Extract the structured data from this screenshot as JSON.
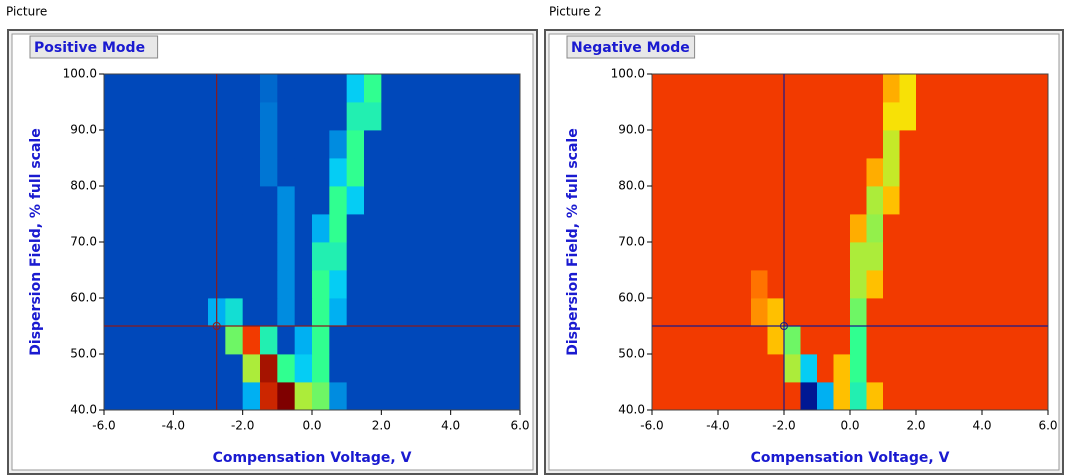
{
  "chart_data": [
    {
      "type": "heatmap",
      "panel_label": "Picture",
      "title": "Positive Mode",
      "xlabel": "Compensation Voltage, V",
      "ylabel": "Dispersion Field, % full scale",
      "xlim": [
        -6,
        6
      ],
      "ylim": [
        40,
        100
      ],
      "xticks": [
        {
          "value": -6,
          "label": "-6.0"
        },
        {
          "value": -4,
          "label": "-4.0"
        },
        {
          "value": -2,
          "label": "-2.0"
        },
        {
          "value": 0,
          "label": "0.0"
        },
        {
          "value": 2,
          "label": "2.0"
        },
        {
          "value": 4,
          "label": "4.0"
        },
        {
          "value": 6,
          "label": "6.0"
        }
      ],
      "yticks": [
        {
          "value": 40,
          "label": "40.0"
        },
        {
          "value": 50,
          "label": "50.0"
        },
        {
          "value": 60,
          "label": "60.0"
        },
        {
          "value": 70,
          "label": "70.0"
        },
        {
          "value": 80,
          "label": "80.0"
        },
        {
          "value": 90,
          "label": "90.0"
        },
        {
          "value": 100,
          "label": "100.0"
        }
      ],
      "xbins": [
        -6,
        -5.5,
        -5,
        -4.5,
        -4,
        -3.5,
        -3,
        -2.5,
        -2,
        -1.5,
        -1,
        -0.5,
        0,
        0.5,
        1,
        1.5,
        2,
        2.5,
        3,
        3.5,
        4,
        4.5,
        5,
        5.5,
        6
      ],
      "ybins": [
        40,
        45,
        50,
        55,
        60,
        65,
        70,
        75,
        80,
        85,
        90,
        95,
        100
      ],
      "colormap": [
        "#00007f",
        "#0050c0",
        "#00c8ff",
        "#30ff90",
        "#ffe000",
        "#ff4000",
        "#7f0000"
      ],
      "cursor": {
        "x": -2.75,
        "y": 55,
        "color": "#8b1a1a"
      },
      "z": [
        [
          0.15,
          0.15,
          0.15,
          0.15,
          0.15,
          0.15,
          0.15,
          0.15,
          0.3,
          0.9,
          1,
          0.6,
          0.55,
          0.25,
          0.15,
          0.15,
          0.15,
          0.15,
          0.15,
          0.15,
          0.15,
          0.15,
          0.15,
          0.15
        ],
        [
          0.15,
          0.15,
          0.15,
          0.15,
          0.15,
          0.15,
          0.15,
          0.15,
          0.6,
          0.95,
          0.5,
          0.35,
          0.5,
          0.15,
          0.15,
          0.15,
          0.15,
          0.15,
          0.15,
          0.15,
          0.15,
          0.15,
          0.15,
          0.15
        ],
        [
          0.15,
          0.15,
          0.15,
          0.15,
          0.15,
          0.15,
          0.15,
          0.55,
          0.85,
          0.45,
          0.15,
          0.3,
          0.5,
          0.15,
          0.15,
          0.15,
          0.15,
          0.15,
          0.15,
          0.15,
          0.15,
          0.15,
          0.15,
          0.15
        ],
        [
          0.15,
          0.15,
          0.15,
          0.15,
          0.15,
          0.15,
          0.3,
          0.4,
          0.15,
          0.15,
          0.25,
          0.15,
          0.5,
          0.3,
          0.15,
          0.15,
          0.15,
          0.15,
          0.15,
          0.15,
          0.15,
          0.15,
          0.15,
          0.15
        ],
        [
          0.15,
          0.15,
          0.15,
          0.15,
          0.15,
          0.15,
          0.15,
          0.15,
          0.15,
          0.15,
          0.25,
          0.15,
          0.5,
          0.35,
          0.15,
          0.15,
          0.15,
          0.15,
          0.15,
          0.15,
          0.15,
          0.15,
          0.15,
          0.15
        ],
        [
          0.15,
          0.15,
          0.15,
          0.15,
          0.15,
          0.15,
          0.15,
          0.15,
          0.15,
          0.15,
          0.25,
          0.15,
          0.45,
          0.45,
          0.15,
          0.15,
          0.15,
          0.15,
          0.15,
          0.15,
          0.15,
          0.15,
          0.15,
          0.15
        ],
        [
          0.15,
          0.15,
          0.15,
          0.15,
          0.15,
          0.15,
          0.15,
          0.15,
          0.15,
          0.15,
          0.25,
          0.15,
          0.3,
          0.5,
          0.15,
          0.15,
          0.15,
          0.15,
          0.15,
          0.15,
          0.15,
          0.15,
          0.15,
          0.15
        ],
        [
          0.15,
          0.15,
          0.15,
          0.15,
          0.15,
          0.15,
          0.15,
          0.15,
          0.15,
          0.15,
          0.25,
          0.15,
          0.15,
          0.5,
          0.35,
          0.15,
          0.15,
          0.15,
          0.15,
          0.15,
          0.15,
          0.15,
          0.15,
          0.15
        ],
        [
          0.15,
          0.15,
          0.15,
          0.15,
          0.15,
          0.15,
          0.15,
          0.15,
          0.15,
          0.22,
          0.15,
          0.15,
          0.15,
          0.35,
          0.5,
          0.15,
          0.15,
          0.15,
          0.15,
          0.15,
          0.15,
          0.15,
          0.15,
          0.15
        ],
        [
          0.15,
          0.15,
          0.15,
          0.15,
          0.15,
          0.15,
          0.15,
          0.15,
          0.15,
          0.22,
          0.15,
          0.15,
          0.15,
          0.25,
          0.5,
          0.15,
          0.15,
          0.15,
          0.15,
          0.15,
          0.15,
          0.15,
          0.15,
          0.15
        ],
        [
          0.15,
          0.15,
          0.15,
          0.15,
          0.15,
          0.15,
          0.15,
          0.15,
          0.15,
          0.22,
          0.15,
          0.15,
          0.15,
          0.15,
          0.45,
          0.45,
          0.15,
          0.15,
          0.15,
          0.15,
          0.15,
          0.15,
          0.15,
          0.15
        ],
        [
          0.15,
          0.15,
          0.15,
          0.15,
          0.15,
          0.15,
          0.15,
          0.15,
          0.15,
          0.2,
          0.15,
          0.15,
          0.15,
          0.15,
          0.35,
          0.5,
          0.15,
          0.15,
          0.15,
          0.15,
          0.15,
          0.15,
          0.15,
          0.15
        ]
      ]
    },
    {
      "type": "heatmap",
      "panel_label": "Picture 2",
      "title": "Negative Mode",
      "xlabel": "Compensation Voltage, V",
      "ylabel": "Dispersion Field, % full scale",
      "xlim": [
        -6,
        6
      ],
      "ylim": [
        40,
        100
      ],
      "xticks": [
        {
          "value": -6,
          "label": "-6.0"
        },
        {
          "value": -4,
          "label": "-4.0"
        },
        {
          "value": -2,
          "label": "-2.0"
        },
        {
          "value": 0,
          "label": "0.0"
        },
        {
          "value": 2,
          "label": "2.0"
        },
        {
          "value": 4,
          "label": "4.0"
        },
        {
          "value": 6,
          "label": "6.0"
        }
      ],
      "yticks": [
        {
          "value": 40,
          "label": "40.0"
        },
        {
          "value": 50,
          "label": "50.0"
        },
        {
          "value": 60,
          "label": "60.0"
        },
        {
          "value": 70,
          "label": "70.0"
        },
        {
          "value": 80,
          "label": "80.0"
        },
        {
          "value": 90,
          "label": "90.0"
        },
        {
          "value": 100,
          "label": "100.0"
        }
      ],
      "xbins": [
        -6,
        -5.5,
        -5,
        -4.5,
        -4,
        -3.5,
        -3,
        -2.5,
        -2,
        -1.5,
        -1,
        -0.5,
        0,
        0.5,
        1,
        1.5,
        2,
        2.5,
        3,
        3.5,
        4,
        4.5,
        5,
        5.5,
        6
      ],
      "ybins": [
        40,
        45,
        50,
        55,
        60,
        65,
        70,
        75,
        80,
        85,
        90,
        95,
        100
      ],
      "colormap": [
        "#00007f",
        "#0050c0",
        "#00c8ff",
        "#30ff90",
        "#ffe000",
        "#ff4000",
        "#7f0000"
      ],
      "cursor": {
        "x": -2,
        "y": 55,
        "color": "#1a1a8b"
      },
      "z": [
        [
          0.85,
          0.85,
          0.85,
          0.85,
          0.85,
          0.85,
          0.85,
          0.85,
          0.85,
          0.05,
          0.3,
          0.7,
          0.45,
          0.7,
          0.85,
          0.85,
          0.85,
          0.85,
          0.85,
          0.85,
          0.85,
          0.85,
          0.85,
          0.85
        ],
        [
          0.85,
          0.85,
          0.85,
          0.85,
          0.85,
          0.85,
          0.85,
          0.85,
          0.6,
          0.35,
          0.85,
          0.7,
          0.5,
          0.85,
          0.85,
          0.85,
          0.85,
          0.85,
          0.85,
          0.85,
          0.85,
          0.85,
          0.85,
          0.85
        ],
        [
          0.85,
          0.85,
          0.85,
          0.85,
          0.85,
          0.85,
          0.85,
          0.7,
          0.55,
          0.85,
          0.85,
          0.85,
          0.5,
          0.85,
          0.85,
          0.85,
          0.85,
          0.85,
          0.85,
          0.85,
          0.85,
          0.85,
          0.85,
          0.85
        ],
        [
          0.85,
          0.85,
          0.85,
          0.85,
          0.85,
          0.85,
          0.75,
          0.7,
          0.85,
          0.85,
          0.85,
          0.85,
          0.55,
          0.85,
          0.85,
          0.85,
          0.85,
          0.85,
          0.85,
          0.85,
          0.85,
          0.85,
          0.85,
          0.85
        ],
        [
          0.85,
          0.85,
          0.85,
          0.85,
          0.85,
          0.85,
          0.78,
          0.85,
          0.85,
          0.85,
          0.85,
          0.85,
          0.6,
          0.7,
          0.85,
          0.85,
          0.85,
          0.85,
          0.85,
          0.85,
          0.85,
          0.85,
          0.85,
          0.85
        ],
        [
          0.85,
          0.85,
          0.85,
          0.85,
          0.85,
          0.85,
          0.85,
          0.85,
          0.85,
          0.85,
          0.85,
          0.85,
          0.6,
          0.6,
          0.85,
          0.85,
          0.85,
          0.85,
          0.85,
          0.85,
          0.85,
          0.85,
          0.85,
          0.85
        ],
        [
          0.85,
          0.85,
          0.85,
          0.85,
          0.85,
          0.85,
          0.85,
          0.85,
          0.85,
          0.85,
          0.85,
          0.85,
          0.72,
          0.58,
          0.85,
          0.85,
          0.85,
          0.85,
          0.85,
          0.85,
          0.85,
          0.85,
          0.85,
          0.85
        ],
        [
          0.85,
          0.85,
          0.85,
          0.85,
          0.85,
          0.85,
          0.85,
          0.85,
          0.85,
          0.85,
          0.85,
          0.85,
          0.85,
          0.6,
          0.7,
          0.85,
          0.85,
          0.85,
          0.85,
          0.85,
          0.85,
          0.85,
          0.85,
          0.85
        ],
        [
          0.85,
          0.85,
          0.85,
          0.85,
          0.85,
          0.85,
          0.85,
          0.85,
          0.85,
          0.85,
          0.85,
          0.85,
          0.85,
          0.72,
          0.62,
          0.85,
          0.85,
          0.85,
          0.85,
          0.85,
          0.85,
          0.85,
          0.85,
          0.85
        ],
        [
          0.85,
          0.85,
          0.85,
          0.85,
          0.85,
          0.85,
          0.85,
          0.85,
          0.85,
          0.85,
          0.85,
          0.85,
          0.85,
          0.85,
          0.62,
          0.85,
          0.85,
          0.85,
          0.85,
          0.85,
          0.85,
          0.85,
          0.85,
          0.85
        ],
        [
          0.85,
          0.85,
          0.85,
          0.85,
          0.85,
          0.85,
          0.85,
          0.85,
          0.85,
          0.85,
          0.85,
          0.85,
          0.85,
          0.85,
          0.66,
          0.66,
          0.85,
          0.85,
          0.85,
          0.85,
          0.85,
          0.85,
          0.85,
          0.85
        ],
        [
          0.85,
          0.85,
          0.85,
          0.85,
          0.85,
          0.85,
          0.85,
          0.85,
          0.85,
          0.85,
          0.85,
          0.85,
          0.85,
          0.85,
          0.72,
          0.66,
          0.85,
          0.85,
          0.85,
          0.85,
          0.85,
          0.85,
          0.85,
          0.85
        ]
      ]
    }
  ]
}
